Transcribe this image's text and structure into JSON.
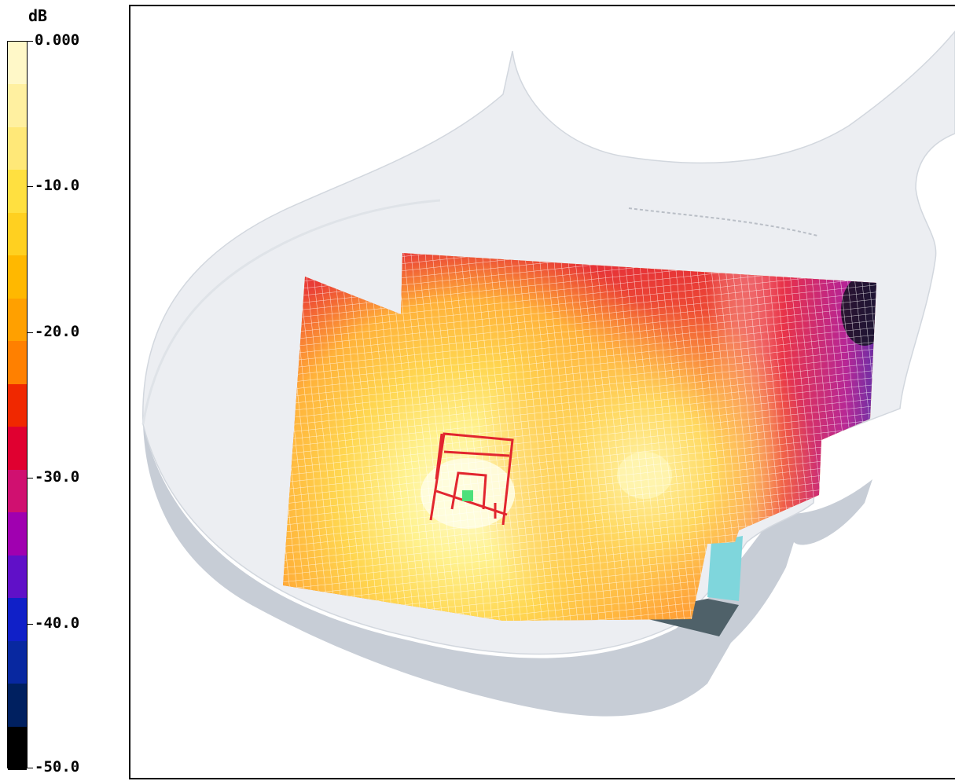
{
  "legend": {
    "unit": "dB",
    "labels": [
      "0.000",
      "-10.0",
      "-20.0",
      "-30.0",
      "-40.0",
      "-50.0"
    ],
    "colors": [
      "#fff8c8",
      "#fff0a0",
      "#ffe878",
      "#ffe040",
      "#ffd020",
      "#ffb800",
      "#ffa000",
      "#ff8000",
      "#f02800",
      "#e00030",
      "#d01070",
      "#a000b0",
      "#6010c8",
      "#1020c8",
      "#0828a0",
      "#002060",
      "#000000"
    ],
    "band_count": 15
  },
  "view": {
    "description_colors": {
      "room": "#e9ecf1",
      "room_side": "#c9cfd7",
      "speaker_outline": "#e0262f",
      "listener": "#4ee07a",
      "cyan_panel": "#7fd7dc",
      "dark_panel": "#4d6068"
    }
  }
}
